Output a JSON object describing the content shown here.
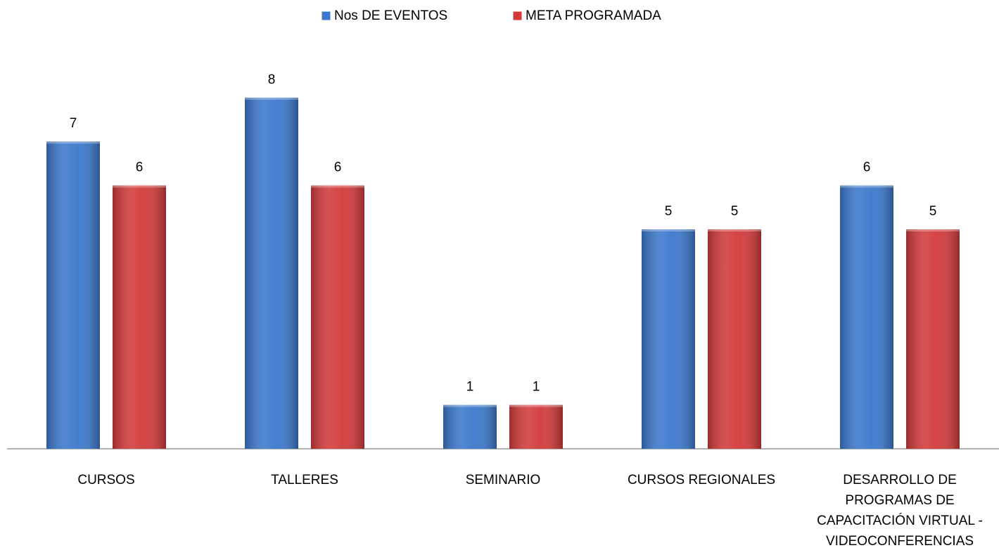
{
  "chart_data": {
    "type": "bar",
    "categories": [
      "CURSOS",
      "TALLERES",
      "SEMINARIO",
      "CURSOS REGIONALES",
      "DESARROLLO DE\nPROGRAMAS DE\nCAPACITACIÓN VIRTUAL -\nVIDEOCONFERENCIAS"
    ],
    "series": [
      {
        "name": "Nos DE EVENTOS",
        "color": "#3b78cc",
        "values": [
          7,
          8,
          1,
          5,
          6
        ]
      },
      {
        "name": "META PROGRAMADA",
        "color": "#d23a3a",
        "values": [
          6,
          6,
          1,
          5,
          5
        ]
      }
    ],
    "ylim": [
      0,
      9
    ],
    "legend": "top"
  }
}
